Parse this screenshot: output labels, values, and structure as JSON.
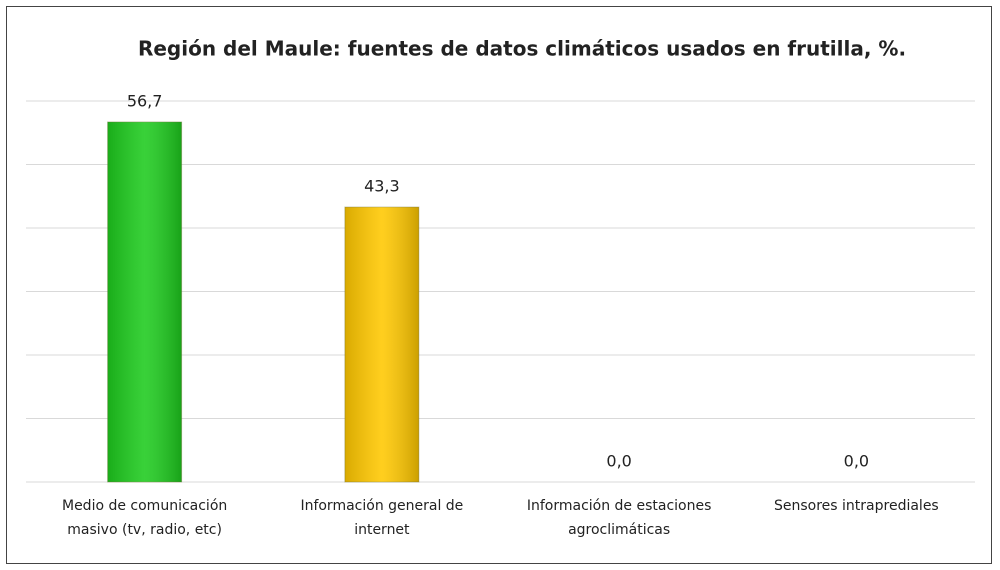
{
  "chart_data": {
    "type": "bar",
    "title": "Región del Maule: fuentes de datos climáticos usados en frutilla, %.",
    "categories": [
      "Medio de comunicación masivo (tv, radio, etc)",
      "Información general de internet",
      "Información de estaciones agroclimáticas",
      "Sensores intraprediales"
    ],
    "values": [
      56.7,
      43.3,
      0,
      0
    ],
    "value_labels": [
      "56,7",
      "43,3",
      "0,0",
      "0,0"
    ],
    "colors": [
      "#1ecb1e",
      "#ffc800",
      null,
      null
    ],
    "ylim": [
      0,
      60
    ],
    "yticks": [
      0,
      10,
      20,
      30,
      40,
      50,
      60
    ],
    "grid": true
  }
}
